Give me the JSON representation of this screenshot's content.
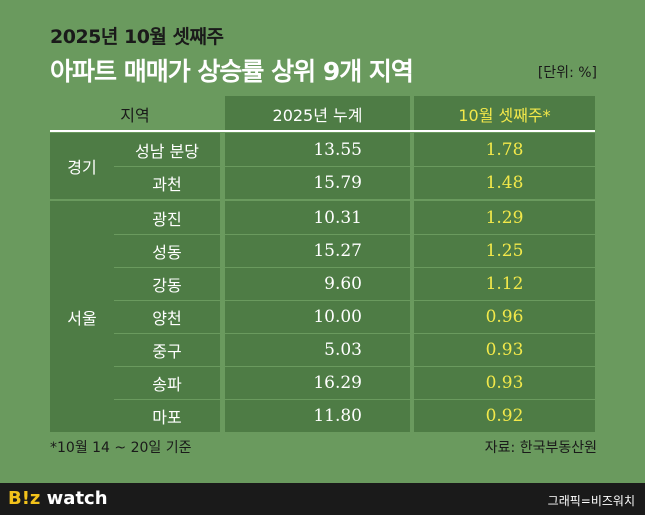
{
  "header": {
    "subtitle": "2025년 10월 셋째주",
    "title": "아파트 매매가 상승률 상위 9개 지역",
    "unit": "[단위: %]"
  },
  "chart_data": {
    "type": "table",
    "columns": [
      "지역",
      "2025년 누계",
      "10월 셋째주*"
    ],
    "groups": [
      {
        "name": "경기",
        "rows": [
          {
            "area": "성남 분당",
            "cumulative": "13.55",
            "week": "1.78"
          },
          {
            "area": "과천",
            "cumulative": "15.79",
            "week": "1.48"
          }
        ]
      },
      {
        "name": "서울",
        "rows": [
          {
            "area": "광진",
            "cumulative": "10.31",
            "week": "1.29"
          },
          {
            "area": "성동",
            "cumulative": "15.27",
            "week": "1.25"
          },
          {
            "area": "강동",
            "cumulative": "9.60",
            "week": "1.12"
          },
          {
            "area": "양천",
            "cumulative": "10.00",
            "week": "0.96"
          },
          {
            "area": "중구",
            "cumulative": "5.03",
            "week": "0.93"
          },
          {
            "area": "송파",
            "cumulative": "16.29",
            "week": "0.93"
          },
          {
            "area": "마포",
            "cumulative": "11.80",
            "week": "0.92"
          }
        ]
      }
    ]
  },
  "footer": {
    "footnote": "*10월 14 ~ 20일 기준",
    "source": "자료: 한국부동산원",
    "logo_bz": "B!z",
    "logo_watch": " watch",
    "credit": "그래픽=비즈워치"
  },
  "colors": {
    "background": "#6a9a5e",
    "cell": "#4e7c45",
    "highlight": "#f2e84a"
  }
}
